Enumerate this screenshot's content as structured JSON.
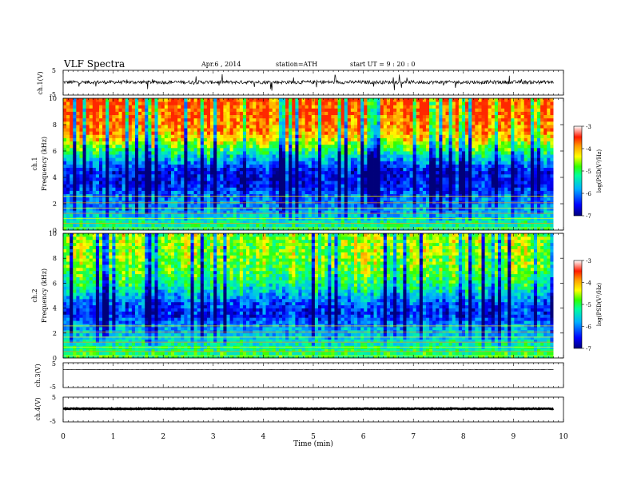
{
  "header": {
    "title": "VLF  Spectra",
    "date": "Apr.6  , 2014",
    "station": "station=ATH",
    "start": "start  UT  =   9 : 20 : 0"
  },
  "colors": {
    "background": "#ffffff",
    "axis": "#000000",
    "waveform": "#000000",
    "colormap": [
      "#00007a",
      "#0000ff",
      "#00b0ff",
      "#00ff9c",
      "#32ff00",
      "#ffff00",
      "#ff9a00",
      "#ff1a00",
      "#ffffff"
    ]
  },
  "chart_data": [
    {
      "type": "line",
      "panel": "ch1-waveform",
      "ylabel": "ch.1(V)",
      "ylim": [
        -5,
        5
      ],
      "yticks": [
        5,
        -5
      ],
      "xlim": [
        0,
        10
      ],
      "baseline": 0.2,
      "amplitude_typical": 0.7,
      "amplitude_max": 3.5,
      "trace_end_min": 9.8
    },
    {
      "type": "heatmap",
      "panel": "ch1-spectrogram",
      "ylabel": "ch.1 Frequency (kHz)",
      "ylim": [
        0,
        10
      ],
      "yticks": [
        0,
        2,
        4,
        6,
        8,
        10
      ],
      "xlim": [
        0,
        10
      ],
      "trace_end_min": 9.8,
      "colorbar": {
        "label": "log(PSD(V²/Hz)",
        "range": [
          -7,
          -3
        ],
        "ticks": [
          -3,
          -4,
          -5,
          -6,
          -7
        ]
      },
      "freq_profile_kHz": [
        0.5,
        1.5,
        2.5,
        3.5,
        4.5,
        5.5,
        6.5,
        7.5,
        8.5,
        9.5
      ],
      "logpsd_profile": [
        -5.2,
        -5.8,
        -6.0,
        -6.5,
        -6.5,
        -5.6,
        -4.6,
        -3.9,
        -3.7,
        -3.6
      ]
    },
    {
      "type": "heatmap",
      "panel": "ch2-spectrogram",
      "ylabel": "ch.2 Frequency (kHz)",
      "ylim": [
        0,
        10
      ],
      "yticks": [
        0,
        2,
        4,
        6,
        8,
        10
      ],
      "xlim": [
        0,
        10
      ],
      "trace_end_min": 9.8,
      "colorbar": {
        "label": "log(PSD(V²/Hz)",
        "range": [
          -7,
          -3
        ],
        "ticks": [
          -3,
          -4,
          -5,
          -6,
          -7
        ]
      },
      "freq_profile_kHz": [
        0.5,
        1.5,
        2.5,
        3.5,
        4.5,
        5.5,
        6.5,
        7.5,
        8.5,
        9.5
      ],
      "logpsd_profile": [
        -5.0,
        -5.5,
        -5.8,
        -6.4,
        -6.1,
        -5.4,
        -4.9,
        -4.7,
        -4.6,
        -4.6
      ]
    },
    {
      "type": "line",
      "panel": "ch3-waveform",
      "ylabel": "ch.3(V)",
      "ylim": [
        -5,
        5
      ],
      "yticks": [
        5,
        -5
      ],
      "xlim": [
        0,
        10
      ],
      "baseline": 2.3,
      "amplitude_typical": 0.05,
      "trace_end_min": 9.8
    },
    {
      "type": "line",
      "panel": "ch4-waveform",
      "ylabel": "ch.4(V)",
      "ylim": [
        -5,
        5
      ],
      "yticks": [
        5,
        -5
      ],
      "xlim": [
        0,
        10
      ],
      "baseline": 0.3,
      "amplitude_typical": 0.15,
      "trace_end_min": 9.8
    }
  ],
  "x_axis": {
    "label": "Time  (min)",
    "ticks": [
      "0",
      "1",
      "2",
      "3",
      "4",
      "5",
      "6",
      "7",
      "8",
      "9",
      "10"
    ]
  }
}
